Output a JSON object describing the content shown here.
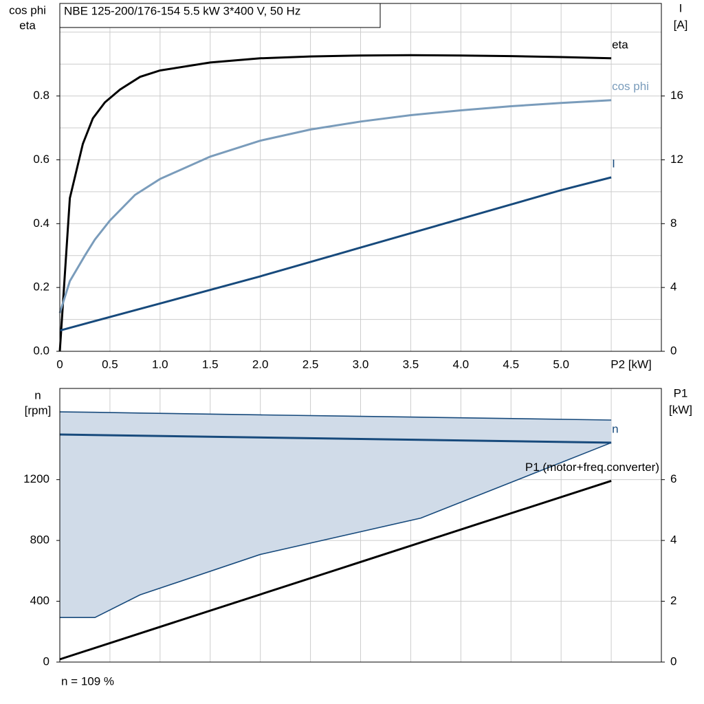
{
  "chart_data": [
    {
      "type": "line",
      "title": "NBE 125-200/176-154   5.5 kW   3*400 V, 50 Hz",
      "y_label": [
        "cos phi",
        "eta"
      ],
      "y2_label": [
        "I",
        "[A]"
      ],
      "x_label": "P2 [kW]",
      "xlim": [
        0,
        6
      ],
      "xticks": [
        0,
        0.5,
        {
          "value": 1,
          "label": "1.0"
        },
        1.5,
        {
          "value": 2,
          "label": "2.0"
        },
        2.5,
        {
          "value": 3,
          "label": "3.0"
        },
        3.5,
        {
          "value": 4,
          "label": "4.0"
        },
        4.5,
        {
          "value": 5,
          "label": "5.0"
        }
      ],
      "xgrid": [
        5.5
      ],
      "ylim": [
        0,
        1.09
      ],
      "yticks": [
        {
          "value": 0,
          "label": "0.0"
        },
        0.2,
        0.4,
        0.6,
        0.8
      ],
      "ygrid": [
        0.1,
        0.3,
        0.5,
        0.7,
        0.9,
        1.0
      ],
      "y2lim": [
        0,
        21.8
      ],
      "y2ticks": [
        0,
        4,
        8,
        12,
        16
      ],
      "grid": true,
      "series": [
        {
          "name": "eta",
          "color": "#000000",
          "x": [
            0,
            0.1,
            0.23,
            0.33,
            0.45,
            0.6,
            0.8,
            1.0,
            1.5,
            2.0,
            2.5,
            3.0,
            3.5,
            4.0,
            4.5,
            5.0,
            5.5
          ],
          "values": [
            0,
            0.48,
            0.65,
            0.73,
            0.78,
            0.82,
            0.86,
            0.88,
            0.905,
            0.918,
            0.924,
            0.927,
            0.928,
            0.927,
            0.925,
            0.922,
            0.918
          ]
        },
        {
          "name": "cos phi",
          "color": "#7a9cbb",
          "x": [
            0,
            0.1,
            0.25,
            0.35,
            0.5,
            0.75,
            1.0,
            1.5,
            2.0,
            2.5,
            3.0,
            3.5,
            4.0,
            4.5,
            5.0,
            5.5
          ],
          "values": [
            0.12,
            0.22,
            0.3,
            0.35,
            0.41,
            0.49,
            0.54,
            0.61,
            0.66,
            0.695,
            0.72,
            0.74,
            0.755,
            0.768,
            0.778,
            0.787
          ]
        },
        {
          "name": "I",
          "color": "#174a7c",
          "axis": "y2",
          "x": [
            0,
            1,
            2,
            3,
            4,
            5,
            5.5
          ],
          "values": [
            1.3,
            3.0,
            4.7,
            6.5,
            8.3,
            10.1,
            10.9
          ]
        }
      ]
    },
    {
      "type": "line",
      "y_label": [
        "n",
        "[rpm]"
      ],
      "y2_label": [
        "P1",
        "[kW]"
      ],
      "annotation": "n = 109 %",
      "xlim": [
        0,
        6
      ],
      "xgrid": [
        0.5,
        1,
        1.5,
        2,
        2.5,
        3,
        3.5,
        4,
        4.5,
        5,
        5.5
      ],
      "ylim": [
        0,
        1800
      ],
      "yticks": [
        0,
        400,
        800,
        1200
      ],
      "y2lim": [
        0,
        9
      ],
      "y2ticks": [
        0,
        2,
        4,
        6
      ],
      "grid": true,
      "band": {
        "color": "#d0dbe8",
        "edge_color": "#174a7c",
        "x": [
          0,
          0.35,
          0.8,
          2.0,
          3.6,
          5.5
        ],
        "upper": [
          1646,
          1643,
          1638,
          1626,
          1611,
          1592
        ],
        "lower": [
          293,
          293,
          442,
          708,
          947,
          1443
        ]
      },
      "series": [
        {
          "name": "n",
          "color": "#174a7c",
          "x": [
            0,
            5.5
          ],
          "values": [
            1497,
            1443
          ]
        },
        {
          "name": "P1 (motor+freq.converter)",
          "color": "#000000",
          "axis": "y2",
          "x": [
            0,
            5.5
          ],
          "values": [
            0.09,
            5.96
          ]
        }
      ]
    }
  ]
}
